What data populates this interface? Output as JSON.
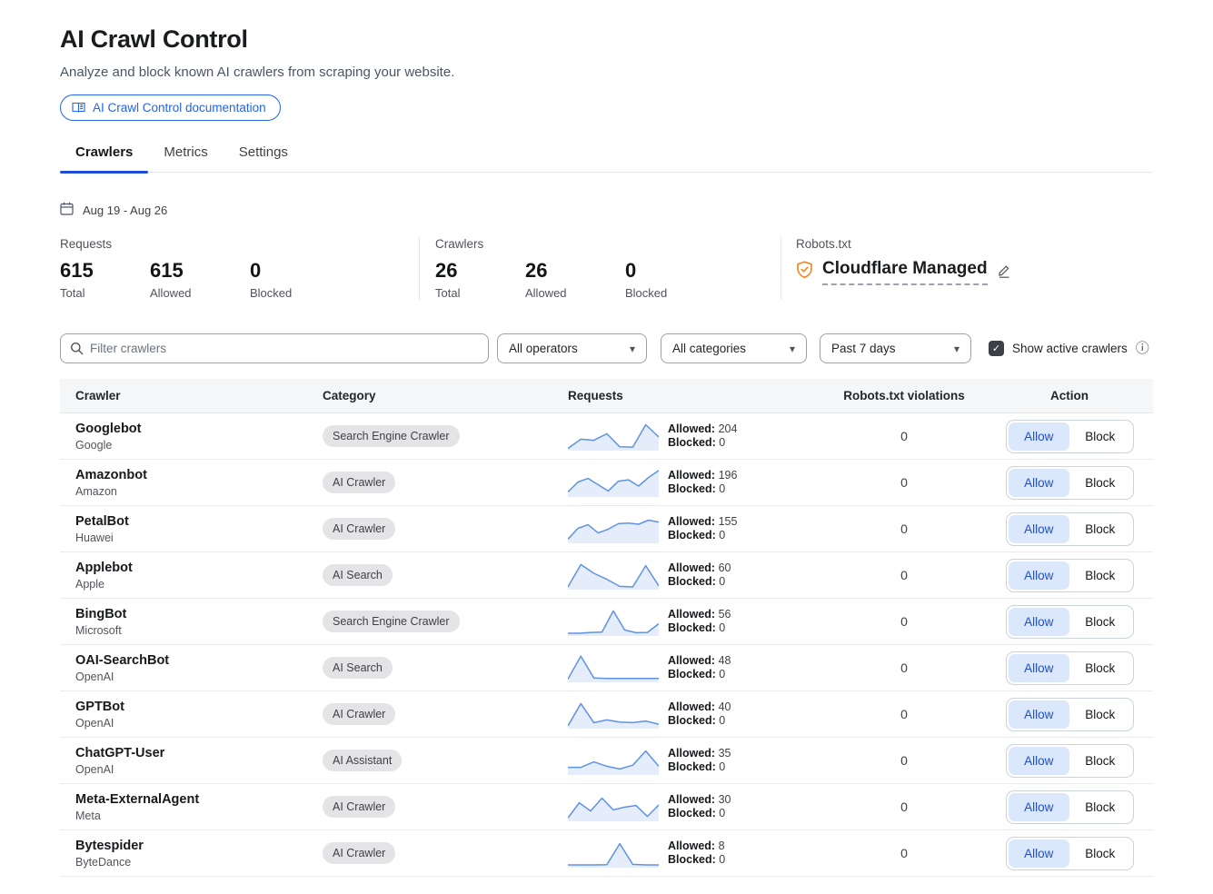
{
  "colors": {
    "accent_blue": "#2563eb",
    "tab_blue": "#1d4ed8",
    "allow_bg": "#dbe8fb",
    "allow_text": "#1d4ed8",
    "spark_line": "#5e92e5",
    "spark_fill": "rgba(94,146,229,0.16)",
    "shield_orange": "#f6821f"
  },
  "header": {
    "title": "AI Crawl Control",
    "subtitle": "Analyze and block known AI crawlers from scraping your website.",
    "doc_link_label": "AI Crawl Control documentation"
  },
  "tabs": [
    {
      "label": "Crawlers",
      "active": true
    },
    {
      "label": "Metrics",
      "active": false
    },
    {
      "label": "Settings",
      "active": false
    }
  ],
  "date_range": "Aug 19 - Aug 26",
  "stats": [
    {
      "title": "Requests",
      "items": [
        {
          "value": "615",
          "label": "Total"
        },
        {
          "value": "615",
          "label": "Allowed"
        },
        {
          "value": "0",
          "label": "Blocked"
        }
      ]
    },
    {
      "title": "Crawlers",
      "items": [
        {
          "value": "26",
          "label": "Total"
        },
        {
          "value": "26",
          "label": "Allowed"
        },
        {
          "value": "0",
          "label": "Blocked"
        }
      ]
    }
  ],
  "robots": {
    "title": "Robots.txt",
    "value": "Cloudflare Managed"
  },
  "filters": {
    "search_placeholder": "Filter crawlers",
    "operators_value": "All operators",
    "categories_value": "All categories",
    "period_value": "Past 7 days",
    "show_active_label": "Show active crawlers",
    "show_active_checked": true,
    "checkmark": "✓",
    "caret": "▾",
    "info_glyph": "ⓘ"
  },
  "table": {
    "columns": [
      "Crawler",
      "Category",
      "Requests",
      "Robots.txt violations",
      "Action"
    ],
    "allowed_label": "Allowed:",
    "blocked_label": "Blocked:",
    "allow_label": "Allow",
    "block_label": "Block",
    "rows": [
      {
        "name": "Googlebot",
        "operator": "Google",
        "category": "Search Engine Crawler",
        "allowed": 204,
        "blocked": 0,
        "violations": 0,
        "action": "allow",
        "sparkline": [
          8,
          42,
          38,
          62,
          14,
          13,
          95,
          50
        ]
      },
      {
        "name": "Amazonbot",
        "operator": "Amazon",
        "category": "AI Crawler",
        "allowed": 196,
        "blocked": 0,
        "violations": 0,
        "action": "allow",
        "sparkline": [
          18,
          55,
          68,
          45,
          22,
          58,
          63,
          40,
          72,
          97
        ]
      },
      {
        "name": "PetalBot",
        "operator": "Huawei",
        "category": "AI Crawler",
        "allowed": 155,
        "blocked": 0,
        "violations": 0,
        "action": "allow",
        "sparkline": [
          15,
          55,
          68,
          38,
          52,
          72,
          74,
          70,
          85,
          78
        ]
      },
      {
        "name": "Applebot",
        "operator": "Apple",
        "category": "AI Search",
        "allowed": 60,
        "blocked": 0,
        "violations": 0,
        "action": "allow",
        "sparkline": [
          10,
          92,
          60,
          38,
          12,
          10,
          88,
          14
        ]
      },
      {
        "name": "BingBot",
        "operator": "Microsoft",
        "category": "Search Engine Crawler",
        "allowed": 56,
        "blocked": 0,
        "violations": 0,
        "action": "allow",
        "sparkline": [
          10,
          10,
          13,
          14,
          92,
          22,
          12,
          13,
          45
        ]
      },
      {
        "name": "OAI-SearchBot",
        "operator": "OpenAI",
        "category": "AI Search",
        "allowed": 48,
        "blocked": 0,
        "violations": 0,
        "action": "allow",
        "sparkline": [
          12,
          96,
          16,
          14,
          14,
          14,
          14,
          14
        ]
      },
      {
        "name": "GPTBot",
        "operator": "OpenAI",
        "category": "AI Crawler",
        "allowed": 40,
        "blocked": 0,
        "violations": 0,
        "action": "allow",
        "sparkline": [
          10,
          92,
          22,
          32,
          24,
          22,
          28,
          16
        ]
      },
      {
        "name": "ChatGPT-User",
        "operator": "OpenAI",
        "category": "AI Assistant",
        "allowed": 35,
        "blocked": 0,
        "violations": 0,
        "action": "allow",
        "sparkline": [
          28,
          28,
          48,
          32,
          22,
          36,
          88,
          32
        ]
      },
      {
        "name": "Meta-ExternalAgent",
        "operator": "Meta",
        "category": "AI Crawler",
        "allowed": 30,
        "blocked": 0,
        "violations": 0,
        "action": "allow",
        "sparkline": [
          12,
          68,
          38,
          85,
          42,
          52,
          58,
          18,
          60
        ]
      },
      {
        "name": "Bytespider",
        "operator": "ByteDance",
        "category": "AI Crawler",
        "allowed": 8,
        "blocked": 0,
        "violations": 0,
        "action": "allow",
        "sparkline": [
          10,
          10,
          10,
          11,
          88,
          12,
          10,
          10
        ]
      }
    ]
  }
}
